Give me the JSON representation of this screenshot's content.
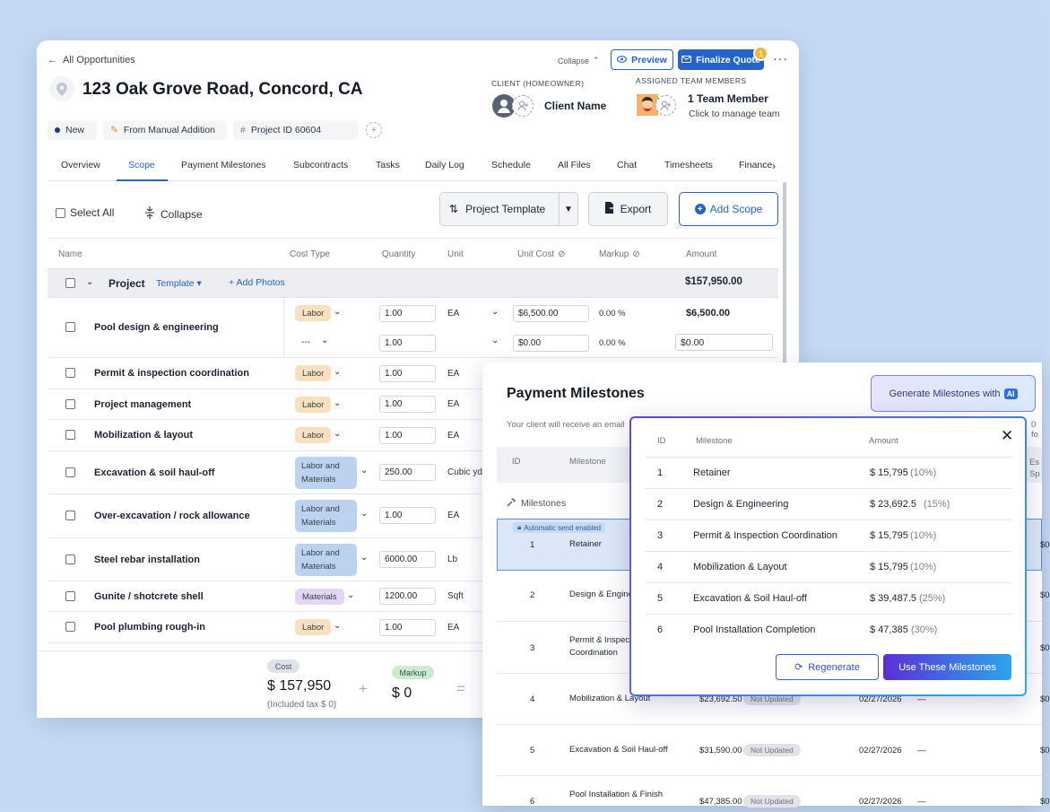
{
  "header": {
    "back_label": "All Opportunities",
    "title": "123 Oak Grove Road, Concord, CA",
    "collapse_label": "Collapse",
    "preview_label": "Preview",
    "finalize_label": "Finalize Quote",
    "finalize_badge": "1",
    "more": "···",
    "client_heading": "CLIENT (HOMEOWNER)",
    "client_name": "Client Name",
    "team_heading": "ASSIGNED TEAM MEMBERS",
    "team_name": "1 Team Member",
    "team_sub": "Click to manage team",
    "chips": {
      "status": "New",
      "source": "From Manual Addition",
      "project_id": "Project ID 60604"
    }
  },
  "tabs": [
    "Overview",
    "Scope",
    "Payment Milestones",
    "Subcontracts",
    "Tasks",
    "Daily Log",
    "Schedule",
    "All Files",
    "Chat",
    "Timesheets",
    "Finance"
  ],
  "active_tab": "Scope",
  "toolbar": {
    "select_all": "Select All",
    "collapse": "Collapse",
    "project_template": "Project Template",
    "export": "Export",
    "add_scope": "Add Scope"
  },
  "table": {
    "columns": [
      "Name",
      "Cost Type",
      "Quantity",
      "Unit",
      "Unit Cost",
      "Markup",
      "Amount"
    ],
    "project_row": {
      "name": "Project",
      "template": "Template",
      "add_photos": "Add Photos",
      "amount": "$157,950.00"
    },
    "rows": [
      {
        "name": "Pool design & engineering",
        "cost_type": "Labor",
        "qty": "1.00",
        "unit": "EA",
        "unit_cost": "$6,500.00",
        "markup": "0.00 %",
        "amount": "$6,500.00",
        "sub": {
          "cost_type": "---",
          "qty": "1.00",
          "unit_cost": "$0.00",
          "markup": "0.00 %",
          "amount": "$0.00"
        }
      },
      {
        "name": "Permit & inspection coordination",
        "cost_type": "Labor",
        "qty": "1.00",
        "unit": "EA"
      },
      {
        "name": "Project management",
        "cost_type": "Labor",
        "qty": "1.00",
        "unit": "EA"
      },
      {
        "name": "Mobilization & layout",
        "cost_type": "Labor",
        "qty": "1.00",
        "unit": "EA"
      },
      {
        "name": "Excavation & soil haul-off",
        "cost_type": "Labor and Materials",
        "qty": "250.00",
        "unit": "Cubic yd"
      },
      {
        "name": "Over-excavation / rock allowance",
        "cost_type": "Labor and Materials",
        "qty": "1.00",
        "unit": "EA"
      },
      {
        "name": "Steel rebar installation",
        "cost_type": "Labor and Materials",
        "qty": "6000.00",
        "unit": "Lb"
      },
      {
        "name": "Gunite / shotcrete shell",
        "cost_type": "Materials",
        "qty": "1200.00",
        "unit": "Sqft"
      },
      {
        "name": "Pool plumbing rough-in",
        "cost_type": "Labor",
        "qty": "1.00",
        "unit": "EA"
      }
    ]
  },
  "footer": {
    "cost_label": "Cost",
    "cost_value": "$ 157,950",
    "tax_note": "(Included tax $ 0)",
    "markup_label": "Markup",
    "markup_value": "$ 0",
    "plus": "+",
    "equals": "="
  },
  "payment_milestones": {
    "title": "Payment Milestones",
    "generate_label": "Generate Milestones with",
    "ai_tag": "AI",
    "subtitle": "Your client will receive an email",
    "subtitle_tail": "0 fo",
    "columns": {
      "id": "ID",
      "milestone": "Milestone",
      "tail": "Es Sp"
    },
    "group_label": "Milestones",
    "auto_send": "Automatic send enabled",
    "rows": [
      {
        "id": "1",
        "milestone": "Retainer",
        "amount": "",
        "status": "",
        "date": "",
        "dash": "",
        "tail": "$0"
      },
      {
        "id": "2",
        "milestone": "Design & Engine",
        "amount": "",
        "status": "",
        "date": "",
        "dash": "",
        "tail": "$0"
      },
      {
        "id": "3",
        "milestone": "Permit & Inspec Coordination",
        "amount": "",
        "status": "",
        "date": "",
        "dash": "",
        "tail": "$0"
      },
      {
        "id": "4",
        "milestone": "Mobilization & Layout",
        "amount": "$23,692.50",
        "status": "Not Updated",
        "date": "02/27/2026",
        "dash": "—",
        "tail": "$0"
      },
      {
        "id": "5",
        "milestone": "Excavation & Soil Haul-off",
        "amount": "$31,590.00",
        "status": "Not Updated",
        "date": "02/27/2026",
        "dash": "—",
        "tail": "$0"
      },
      {
        "id": "6",
        "milestone": "Pool Installation & Finish",
        "amount": "$47,385.00",
        "status": "Not Updated",
        "date": "02/27/2026",
        "dash": "—",
        "tail": "$0"
      }
    ]
  },
  "ai_modal": {
    "columns": {
      "id": "ID",
      "milestone": "Milestone",
      "amount": "Amount"
    },
    "close": "✕",
    "rows": [
      {
        "id": "1",
        "milestone": "Retainer",
        "amount": "$ 15,795",
        "pct": "(10%)"
      },
      {
        "id": "2",
        "milestone": "Design & Engineering",
        "amount": "$ 23,692.5",
        "pct": "(15%)"
      },
      {
        "id": "3",
        "milestone": "Permit & Inspection Coordination",
        "amount": "$ 15,795",
        "pct": "(10%)"
      },
      {
        "id": "4",
        "milestone": "Mobilization & Layout",
        "amount": "$ 15,795",
        "pct": "(10%)"
      },
      {
        "id": "5",
        "milestone": "Excavation & Soil Haul-off",
        "amount": "$ 39,487.5",
        "pct": "(25%)"
      },
      {
        "id": "6",
        "milestone": "Pool Installation Completion",
        "amount": "$ 47,385",
        "pct": "(30%)"
      }
    ],
    "regenerate": "Regenerate",
    "use": "Use These Milestones"
  },
  "colors": {
    "accent": "#2463c9",
    "labor": "#f7e0bd",
    "labor_materials": "#bcd2ef",
    "materials": "#e3d6f3",
    "background": "#c6d9f3"
  }
}
